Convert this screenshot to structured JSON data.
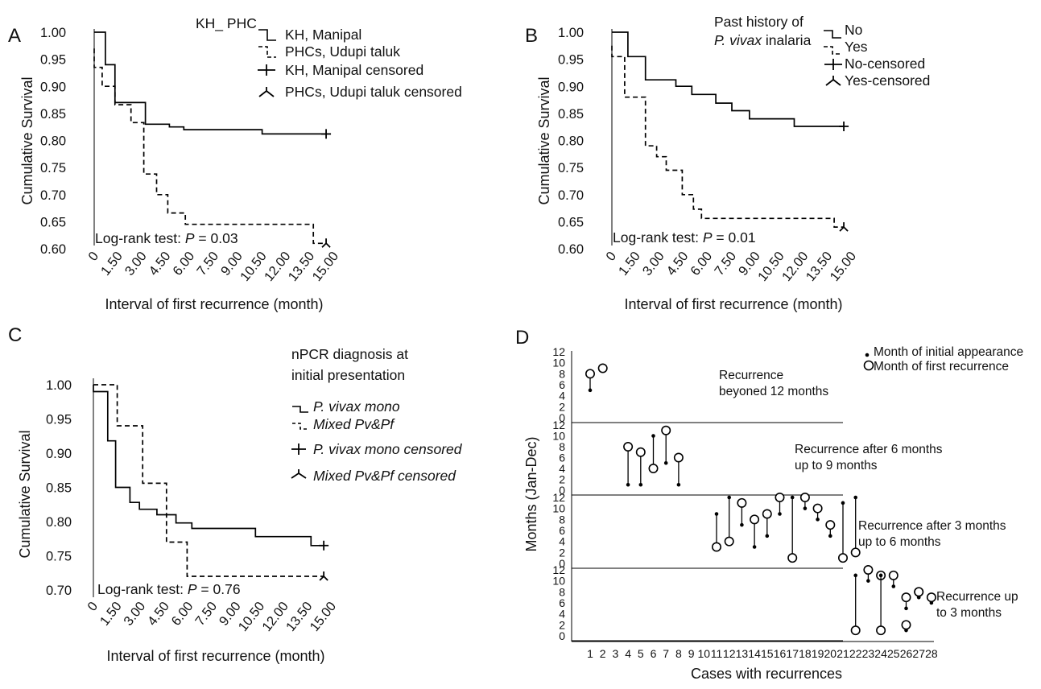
{
  "chart_data": [
    {
      "type": "line",
      "subtype": "kaplan-meier",
      "panel_label": "A",
      "ylabel": "Cumulative Survival",
      "xlabel": "Interval of first recurrence (month)",
      "x_tick_labels": [
        "0",
        "1.50",
        "3.00",
        "4.50",
        "6.00",
        "7.50",
        "9.00",
        "10.50",
        "12.00",
        "13.50",
        "15.00"
      ],
      "x_ticks": [
        0,
        1.5,
        3,
        4.5,
        6,
        7.5,
        9,
        10.5,
        12,
        13.5,
        15
      ],
      "y_tick_labels": [
        "1.00",
        "0.95",
        "0.90",
        "0.85",
        "0.80",
        "0.75",
        "0.70",
        "0.65",
        "0.60"
      ],
      "y_ticks": [
        1.0,
        0.95,
        0.9,
        0.85,
        0.8,
        0.75,
        0.7,
        0.65,
        0.6
      ],
      "xlim": [
        0,
        15
      ],
      "ylim": [
        0.6,
        1.0
      ],
      "legend_title": "KH_ PHC",
      "legend": [
        "KH, Manipal",
        "PHCs, Udupi taluk",
        "KH, Manipal censored",
        "PHCs, Udupi taluk censored"
      ],
      "annotation": {
        "prefix": "Log-rank test: ",
        "p_label": "P",
        "p_value": " = 0.03"
      },
      "series": [
        {
          "name": "KH, Manipal",
          "style": "solid",
          "censored_at": [
            14.5,
            0.812
          ],
          "steps": [
            [
              0,
              1.0
            ],
            [
              0.7,
              1.0
            ],
            [
              0.7,
              0.94
            ],
            [
              1.3,
              0.94
            ],
            [
              1.3,
              0.87
            ],
            [
              3.2,
              0.87
            ],
            [
              3.2,
              0.83
            ],
            [
              4.7,
              0.83
            ],
            [
              4.7,
              0.825
            ],
            [
              5.6,
              0.825
            ],
            [
              5.6,
              0.82
            ],
            [
              10.5,
              0.82
            ],
            [
              10.5,
              0.812
            ],
            [
              14.5,
              0.812
            ]
          ]
        },
        {
          "name": "PHCs, Udupi taluk",
          "style": "dashed",
          "censored_at": [
            14.5,
            0.61
          ],
          "steps": [
            [
              0,
              0.97
            ],
            [
              0,
              0.935
            ],
            [
              0.5,
              0.935
            ],
            [
              0.5,
              0.9
            ],
            [
              1.3,
              0.9
            ],
            [
              1.3,
              0.866
            ],
            [
              2.3,
              0.866
            ],
            [
              2.3,
              0.833
            ],
            [
              3.1,
              0.833
            ],
            [
              3.1,
              0.738
            ],
            [
              3.9,
              0.738
            ],
            [
              3.9,
              0.7
            ],
            [
              4.6,
              0.7
            ],
            [
              4.6,
              0.666
            ],
            [
              5.7,
              0.666
            ],
            [
              5.7,
              0.645
            ],
            [
              13.7,
              0.645
            ],
            [
              13.7,
              0.61
            ],
            [
              14.5,
              0.61
            ]
          ]
        }
      ]
    },
    {
      "type": "line",
      "subtype": "kaplan-meier",
      "panel_label": "B",
      "ylabel": "Cumulative Survival",
      "xlabel": "Interval of first recurrence (month)",
      "x_tick_labels": [
        "0",
        "1.50",
        "3.00",
        "4.50",
        "6.00",
        "7.50",
        "9.00",
        "10.50",
        "12.00",
        "13.50",
        "15.00"
      ],
      "x_ticks": [
        0,
        1.5,
        3,
        4.5,
        6,
        7.5,
        9,
        10.5,
        12,
        13.5,
        15
      ],
      "y_tick_labels": [
        "1.00",
        "0.95",
        "0.90",
        "0.85",
        "0.80",
        "0.75",
        "0.70",
        "0.65",
        "0.60"
      ],
      "y_ticks": [
        1.0,
        0.95,
        0.9,
        0.85,
        0.8,
        0.75,
        0.7,
        0.65,
        0.6
      ],
      "xlim": [
        0,
        15
      ],
      "ylim": [
        0.6,
        1.0
      ],
      "legend_title_line1": "Past history of",
      "legend_title_line2_italic": "P. vivax",
      "legend_title_line2_rest": " inalaria",
      "legend": [
        "No",
        "Yes",
        "No-censored",
        "Yes-censored"
      ],
      "annotation": {
        "prefix": "Log-rank test: ",
        "p_label": "P",
        "p_value": " = 0.01"
      },
      "series": [
        {
          "name": "No",
          "style": "solid",
          "censored_at": [
            14.5,
            0.826
          ],
          "steps": [
            [
              0,
              1.0
            ],
            [
              1.0,
              1.0
            ],
            [
              1.0,
              0.955
            ],
            [
              2.1,
              0.955
            ],
            [
              2.1,
              0.912
            ],
            [
              4.0,
              0.912
            ],
            [
              4.0,
              0.9
            ],
            [
              5.0,
              0.9
            ],
            [
              5.0,
              0.885
            ],
            [
              6.5,
              0.885
            ],
            [
              6.5,
              0.869
            ],
            [
              7.5,
              0.869
            ],
            [
              7.5,
              0.855
            ],
            [
              8.6,
              0.855
            ],
            [
              8.6,
              0.84
            ],
            [
              11.4,
              0.84
            ],
            [
              11.4,
              0.826
            ],
            [
              14.5,
              0.826
            ]
          ]
        },
        {
          "name": "Yes",
          "style": "dashed",
          "censored_at": [
            14.5,
            0.64
          ],
          "steps": [
            [
              0,
              0.975
            ],
            [
              0,
              0.955
            ],
            [
              0.8,
              0.955
            ],
            [
              0.8,
              0.88
            ],
            [
              2.1,
              0.88
            ],
            [
              2.1,
              0.79
            ],
            [
              2.8,
              0.79
            ],
            [
              2.8,
              0.77
            ],
            [
              3.4,
              0.77
            ],
            [
              3.4,
              0.745
            ],
            [
              4.4,
              0.745
            ],
            [
              4.4,
              0.7
            ],
            [
              5.1,
              0.7
            ],
            [
              5.1,
              0.673
            ],
            [
              5.6,
              0.673
            ],
            [
              5.6,
              0.656
            ],
            [
              13.9,
              0.656
            ],
            [
              13.9,
              0.64
            ],
            [
              14.5,
              0.64
            ]
          ]
        }
      ]
    },
    {
      "type": "line",
      "subtype": "kaplan-meier",
      "panel_label": "C",
      "ylabel": "Cumulative Survival",
      "xlabel": "Interval of first recurrence (month)",
      "x_tick_labels": [
        "0",
        "1.50",
        "3.00",
        "4.50",
        "6.00",
        "7.50",
        "9.00",
        "10.50",
        "12.00",
        "13.50",
        "15.00"
      ],
      "x_ticks": [
        0,
        1.5,
        3,
        4.5,
        6,
        7.5,
        9,
        10.5,
        12,
        13.5,
        15
      ],
      "y_tick_labels": [
        "1.00",
        "0.95",
        "0.90",
        "0.85",
        "0.80",
        "0.75",
        "0.70"
      ],
      "y_ticks": [
        1.0,
        0.95,
        0.9,
        0.85,
        0.8,
        0.75,
        0.7
      ],
      "xlim": [
        0,
        15
      ],
      "ylim": [
        0.7,
        1.0
      ],
      "legend_title_line1": "nPCR diagnosis at",
      "legend_title_line2": "initial presentation",
      "legend": [
        "P. vivax mono",
        "Mixed Pv&Pf",
        "P. vivax mono censored",
        "Mixed Pv&Pf censored"
      ],
      "annotation": {
        "prefix": "Log-rank test: ",
        "p_label": "P",
        "p_value": " = 0.76"
      },
      "series": [
        {
          "name": "P. vivax mono",
          "style": "solid",
          "censored_at": [
            14.5,
            0.765
          ],
          "steps": [
            [
              0,
              1.0
            ],
            [
              0,
              0.99
            ],
            [
              0.9,
              0.99
            ],
            [
              0.9,
              0.918
            ],
            [
              1.4,
              0.918
            ],
            [
              1.4,
              0.85
            ],
            [
              2.3,
              0.85
            ],
            [
              2.3,
              0.828
            ],
            [
              2.9,
              0.828
            ],
            [
              2.9,
              0.818
            ],
            [
              4.0,
              0.818
            ],
            [
              4.0,
              0.81
            ],
            [
              5.2,
              0.81
            ],
            [
              5.2,
              0.798
            ],
            [
              6.2,
              0.798
            ],
            [
              6.2,
              0.79
            ],
            [
              10.2,
              0.79
            ],
            [
              10.2,
              0.778
            ],
            [
              13.7,
              0.778
            ],
            [
              13.7,
              0.765
            ],
            [
              14.5,
              0.765
            ]
          ]
        },
        {
          "name": "Mixed Pv&Pf",
          "style": "dashed",
          "censored_at": [
            14.5,
            0.72
          ],
          "steps": [
            [
              0,
              1.0
            ],
            [
              1.5,
              1.0
            ],
            [
              1.5,
              0.94
            ],
            [
              3.1,
              0.94
            ],
            [
              3.1,
              0.856
            ],
            [
              4.6,
              0.856
            ],
            [
              4.6,
              0.77
            ],
            [
              5.9,
              0.77
            ],
            [
              5.9,
              0.72
            ],
            [
              14.5,
              0.72
            ]
          ]
        }
      ]
    },
    {
      "type": "scatter",
      "subtype": "dumbbell",
      "panel_label": "D",
      "ylabel": "Months (Jan-Dec)",
      "xlabel": "Cases with recurrences",
      "x_tick_labels": [
        "1",
        "2",
        "3",
        "4",
        "5",
        "6",
        "7",
        "8",
        "9",
        "10",
        "11",
        "12",
        "13",
        "14",
        "15",
        "16",
        "17",
        "18",
        "19",
        "20",
        "21",
        "22",
        "23",
        "24",
        "25",
        "26",
        "27",
        "28"
      ],
      "y_tick_labels": [
        "12",
        "10",
        "8",
        "6",
        "4",
        "2",
        "0"
      ],
      "y_ticks": [
        12,
        10,
        8,
        6,
        4,
        2,
        0
      ],
      "legend": [
        "Month of initial appearance",
        "Month of first recurrence"
      ],
      "strips": [
        {
          "title": [
            "Recurrence",
            "beyoned 12 months"
          ],
          "cases": [
            {
              "case": 1,
              "initial": 5,
              "recurrence": 8
            },
            {
              "case": 2,
              "initial": 9,
              "recurrence": 9
            }
          ]
        },
        {
          "title": [
            "Recurrence after 6 months",
            "up to 9 months"
          ],
          "cases": [
            {
              "case": 4,
              "initial": 1,
              "recurrence": 8
            },
            {
              "case": 5,
              "initial": 1,
              "recurrence": 7
            },
            {
              "case": 6,
              "initial": 10,
              "recurrence": 4
            },
            {
              "case": 7,
              "initial": 5,
              "recurrence": 11
            },
            {
              "case": 8,
              "initial": 1,
              "recurrence": 6
            }
          ]
        },
        {
          "title": [
            "Recurrence after 3 months",
            "up to 6 months"
          ],
          "cases": [
            {
              "case": 11,
              "initial": 9,
              "recurrence": 3
            },
            {
              "case": 12,
              "initial": 12,
              "recurrence": 4
            },
            {
              "case": 13,
              "initial": 7,
              "recurrence": 11
            },
            {
              "case": 14,
              "initial": 3,
              "recurrence": 8
            },
            {
              "case": 15,
              "initial": 5,
              "recurrence": 9
            },
            {
              "case": 16,
              "initial": 9,
              "recurrence": 12
            },
            {
              "case": 17,
              "initial": 12,
              "recurrence": 1
            },
            {
              "case": 18,
              "initial": 10,
              "recurrence": 12
            },
            {
              "case": 19,
              "initial": 8,
              "recurrence": 10
            },
            {
              "case": 20,
              "initial": 5,
              "recurrence": 7
            },
            {
              "case": 21,
              "initial": 11,
              "recurrence": 1
            },
            {
              "case": 22,
              "initial": 12,
              "recurrence": 2
            }
          ]
        },
        {
          "title": [
            "Recurrence up",
            "to 3 months"
          ],
          "cases": [
            {
              "case": 22,
              "initial": 11,
              "recurrence": 1
            },
            {
              "case": 23,
              "initial": 10,
              "recurrence": 12
            },
            {
              "case": 24,
              "initial": 11,
              "recurrence": 11
            },
            {
              "case": 24,
              "initial": 11,
              "recurrence": 1
            },
            {
              "case": 25,
              "initial": 9,
              "recurrence": 11
            },
            {
              "case": 26,
              "initial": 5,
              "recurrence": 7
            },
            {
              "case": 26,
              "initial": 1,
              "recurrence": 2
            },
            {
              "case": 27,
              "initial": 7,
              "recurrence": 8
            },
            {
              "case": 27,
              "initial": 7,
              "recurrence": 8
            },
            {
              "case": 28,
              "initial": 6,
              "recurrence": 7
            }
          ]
        }
      ]
    }
  ]
}
